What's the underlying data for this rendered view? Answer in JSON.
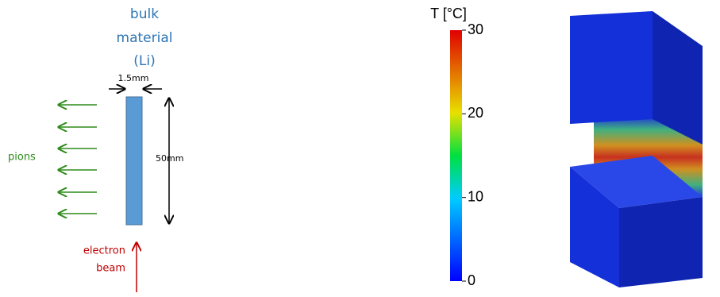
{
  "diagram": {
    "target_label": [
      "bulk",
      "material",
      "(Li)"
    ],
    "width_label": "1.5mm",
    "height_label": "50mm",
    "pions_label": "pions",
    "beam_label": [
      "electron",
      "beam"
    ]
  },
  "colorbar": {
    "title": "T [°C]",
    "lim": [
      0,
      30
    ],
    "ticks": [
      0,
      10,
      20,
      30
    ]
  }
}
